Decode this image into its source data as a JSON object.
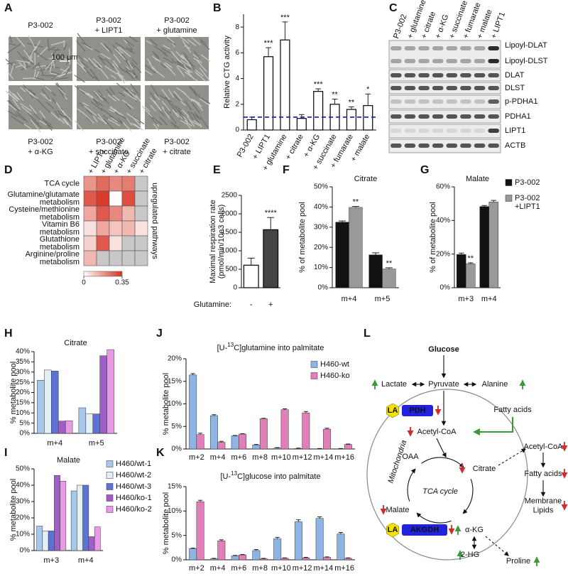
{
  "chart_data": [
    {
      "panel": "B",
      "type": "bar",
      "ylabel": "Relative CTG activity",
      "categories": [
        "P3-002",
        "+ LIPT1",
        "+ glutamine",
        "+ citrate",
        "+ α-KG",
        "+ succinate",
        "+ fumarate",
        "+ malate"
      ],
      "values": [
        0.8,
        5.7,
        7.0,
        0.9,
        3.0,
        2.0,
        1.6,
        1.9
      ],
      "errors": [
        0.2,
        0.7,
        1.4,
        0.3,
        0.2,
        0.4,
        0.2,
        0.9
      ],
      "annotations": [
        null,
        "***",
        "***",
        null,
        "***",
        "**",
        "**",
        "*"
      ],
      "color": "#ffffff",
      "edge_color": "#000000",
      "reference_line": {
        "value": 1,
        "color": "#1f2aa8",
        "style": "dashed"
      },
      "ylim": [
        0,
        9
      ],
      "yticks": [
        0,
        2,
        4,
        6,
        8
      ]
    },
    {
      "panel": "D",
      "type": "heatmap",
      "columns": [
        "+ LIPT1",
        "+ glutamine",
        "+ α-KG",
        "+ succinate",
        "+ citrate"
      ],
      "rows": [
        "TCA cycle",
        "Glutamine/glutamate\nmetabolism",
        "Cysteine/methionine\nmetabolism",
        "Vitamin B6\nmetabolism",
        "Glutathione\nmetabolism",
        "Arginine/proline\nmetabolism"
      ],
      "values": [
        [
          0.18,
          0.25,
          0.2,
          0.22,
          null
        ],
        [
          0.28,
          0.33,
          0,
          0.3,
          null
        ],
        [
          0.15,
          0.28,
          0.2,
          0.12,
          null
        ],
        [
          0.05,
          0.15,
          0.1,
          0.12,
          0.05
        ],
        [
          0.08,
          0.28,
          0.05,
          null,
          null
        ],
        [
          0.12,
          null,
          null,
          null,
          null
        ]
      ],
      "clim": [
        0,
        0.35
      ],
      "colorbar_ticks": [
        0,
        0.35
      ],
      "cmap": [
        "#ffffff",
        "#d7301f"
      ],
      "missing_color": "#c8c8c8",
      "annotation": "upregulated pathways"
    },
    {
      "panel": "E",
      "type": "bar",
      "ylabel": "Maximal respiration rate\n(pmol/min/10e3 cells)",
      "xlabel": "Glutamine:",
      "categories": [
        "-",
        "+"
      ],
      "values": [
        610,
        1570
      ],
      "errors": [
        190,
        330
      ],
      "annotations": [
        null,
        "****"
      ],
      "colors": [
        "#ffffff",
        "#444444"
      ],
      "edge_color": "#000000",
      "ylim": [
        0,
        2500
      ],
      "yticks": [
        0,
        500,
        1000,
        1500,
        2000,
        2500
      ]
    },
    {
      "panel": "F",
      "type": "bar",
      "title": "Citrate",
      "ylabel": "% of metabolite pool",
      "categories": [
        "m+4",
        "m+5"
      ],
      "series": [
        {
          "color": "#111111",
          "values": [
            32.5,
            16.3
          ],
          "errors": [
            0.6,
            1.0
          ]
        },
        {
          "color": "#999999",
          "values": [
            39.8,
            9.3
          ],
          "errors": [
            0.5,
            0.6
          ],
          "annotations": [
            "**",
            "**"
          ]
        }
      ],
      "ylim": [
        0,
        50
      ],
      "yticks": [
        {
          "value": 0,
          "label": "0%"
        },
        {
          "value": 10,
          "label": "10%"
        },
        {
          "value": 20,
          "label": "20%"
        },
        {
          "value": 30,
          "label": "30%"
        },
        {
          "value": 40,
          "label": "40%"
        },
        {
          "value": 50,
          "label": "50%"
        }
      ]
    },
    {
      "panel": "G",
      "type": "bar",
      "title": "Malate",
      "ylabel": "% of metabolite pool",
      "categories": [
        "m+3",
        "m+4"
      ],
      "series": [
        {
          "name": "P3-002",
          "color": "#111111",
          "values": [
            19.8,
            48.3
          ],
          "errors": [
            0.8,
            0.6
          ]
        },
        {
          "name": "P3-002\n+LIPT1",
          "color": "#999999",
          "values": [
            14.2,
            51.0
          ],
          "errors": [
            0.6,
            0.9
          ],
          "annotations": [
            "**",
            null
          ]
        }
      ],
      "legend": "right",
      "ylim": [
        0,
        60
      ],
      "yticks": [
        {
          "value": 0,
          "label": "0%"
        },
        {
          "value": 20,
          "label": "20%"
        },
        {
          "value": 40,
          "label": "40%"
        },
        {
          "value": 60,
          "label": "60%"
        }
      ]
    },
    {
      "panel": "H",
      "type": "bar",
      "title": "Citrate",
      "ylabel": "% metabolite pool",
      "categories": [
        "m+4",
        "m+5"
      ],
      "series": [
        {
          "color": "#a6c8ec",
          "values": [
            26,
            12.5
          ]
        },
        {
          "color": "#e4eff8",
          "values": [
            31,
            9.5
          ]
        },
        {
          "color": "#5b73d6",
          "values": [
            30.5,
            9.5
          ]
        },
        {
          "color": "#a25ec8",
          "values": [
            6,
            38
          ]
        },
        {
          "color": "#e89ae6",
          "values": [
            6.2,
            41
          ]
        }
      ],
      "ylim": [
        0,
        40
      ],
      "yticks": [
        {
          "value": 0,
          "label": "0%"
        },
        {
          "value": 5,
          "label": "5%"
        },
        {
          "value": 10,
          "label": "10%"
        },
        {
          "value": 15,
          "label": "15%"
        },
        {
          "value": 20,
          "label": "20%"
        },
        {
          "value": 25,
          "label": "25%"
        },
        {
          "value": 30,
          "label": "30%"
        },
        {
          "value": 35,
          "label": "35%"
        },
        {
          "value": 40,
          "label": "40%"
        }
      ]
    },
    {
      "panel": "I",
      "type": "bar",
      "title": "Malate",
      "ylabel": "% metabolite pool",
      "categories": [
        "m+3",
        "m+4"
      ],
      "series": [
        {
          "name": "H460/wt-1",
          "color": "#a6c8ec",
          "values": [
            15,
            36.5
          ]
        },
        {
          "name": "H460/wt-2",
          "color": "#e4eff8",
          "values": [
            12,
            40
          ]
        },
        {
          "name": "H460/wt-3",
          "color": "#5b73d6",
          "values": [
            12,
            40
          ]
        },
        {
          "name": "H460/ko-1",
          "color": "#a25ec8",
          "values": [
            46,
            8.5
          ]
        },
        {
          "name": "H460/ko-2",
          "color": "#e89ae6",
          "values": [
            42.5,
            14.5
          ]
        }
      ],
      "legend": "right",
      "ylim": [
        0,
        50
      ],
      "yticks": [
        {
          "value": 0,
          "label": "0%"
        },
        {
          "value": 10,
          "label": "10%"
        },
        {
          "value": 20,
          "label": "20%"
        },
        {
          "value": 30,
          "label": "30%"
        },
        {
          "value": 40,
          "label": "40%"
        },
        {
          "value": 50,
          "label": "50%"
        }
      ]
    },
    {
      "panel": "J",
      "type": "bar",
      "title": [
        "[U-",
        "13",
        "C]glutamine into palmitate"
      ],
      "ylabel": "% metabolite pool",
      "categories": [
        "m+2",
        "m+4",
        "m+6",
        "m+8",
        "m+10",
        "m+12",
        "m+14",
        "m+16"
      ],
      "series": [
        {
          "name": "H460-wt",
          "color": "#8eb4e3",
          "values": [
            16.4,
            7.4,
            2.9,
            0.9,
            0.2,
            0.1,
            0,
            0
          ],
          "errors": [
            0.3,
            0.2,
            0.1,
            0.1,
            0.1,
            0.1,
            0.1,
            0.1
          ]
        },
        {
          "name": "H460-ko",
          "color": "#e07fb8",
          "values": [
            3.2,
            1.5,
            3.3,
            6.7,
            8.7,
            8.0,
            4.4,
            1.0
          ],
          "errors": [
            0.3,
            0.2,
            0.1,
            0.1,
            0.2,
            0.3,
            0.2,
            0.1
          ]
        }
      ],
      "legend": "upper right",
      "ylim": [
        0,
        20
      ],
      "yticks": [
        {
          "value": 0,
          "label": "0%"
        },
        {
          "value": 5,
          "label": "5%"
        },
        {
          "value": 10,
          "label": "10%"
        },
        {
          "value": 15,
          "label": "15%"
        },
        {
          "value": 20,
          "label": "20%"
        }
      ]
    },
    {
      "panel": "K",
      "type": "bar",
      "title": [
        "[U-",
        "13",
        "C]glucose into palmitate"
      ],
      "ylabel": "% metabolite pool",
      "categories": [
        "m+2",
        "m+4",
        "m+6",
        "m+8",
        "m+10",
        "m+12",
        "m+14",
        "m+16"
      ],
      "series": [
        {
          "color": "#8eb4e3",
          "values": [
            2.3,
            0.2,
            0.8,
            1.9,
            4.3,
            7.8,
            8.5,
            5.3
          ],
          "errors": [
            0.1,
            0.1,
            0.1,
            0.2,
            0.3,
            0.4,
            0.3,
            0.3
          ]
        },
        {
          "color": "#e07fb8",
          "values": [
            11.9,
            3.9,
            1.0,
            0.2,
            0.3,
            0.4,
            0.5,
            0.3
          ],
          "errors": [
            0.3,
            0.2,
            0.1,
            0.1,
            0.1,
            0.1,
            0.1,
            0.1
          ]
        }
      ],
      "ylim": [
        0,
        15
      ],
      "yticks": [
        {
          "value": 0,
          "label": "0%"
        },
        {
          "value": 5,
          "label": "5%"
        },
        {
          "value": 10,
          "label": "10%"
        },
        {
          "value": 15,
          "label": "15%"
        }
      ]
    }
  ],
  "figure": {
    "A": {
      "panel": "A",
      "images": [
        {
          "label": "P3-002"
        },
        {
          "label": "P3-002\n+ LIPT1"
        },
        {
          "label": "P3-002\n+ glutamine"
        },
        {
          "label": "P3-002\n+ α-KG"
        },
        {
          "label": "P3-002\n+ succinate"
        },
        {
          "label": "P3-002\n+ citrate"
        }
      ],
      "scale_bar": "100 μm"
    },
    "C": {
      "panel": "C",
      "lanes": [
        "P3-002",
        "+ glutamine",
        "+ citrate",
        "+ α-KG",
        "+ succinate",
        "+ fumarate",
        "+ malate",
        "+ LIPT1"
      ],
      "bands": [
        "Lipoyl-DLAT",
        "Lipoyl-DLST",
        "DLAT",
        "DLST",
        "p-PDHA1",
        "PDHA1",
        "LIPT1",
        "ACTB"
      ]
    },
    "L": {
      "panel": "L",
      "nodes": [
        {
          "label": "Glucose"
        },
        {
          "label": "Lactate"
        },
        {
          "label": "Pyruvate"
        },
        {
          "label": "Alanine"
        },
        {
          "label": "LA"
        },
        {
          "label": "PDH"
        },
        {
          "label": "Fatty acids"
        },
        {
          "label": "Acetyl-CoA"
        },
        {
          "label": "Mitochondria"
        },
        {
          "label": "OAA"
        },
        {
          "label": "Citrate"
        },
        {
          "label": "Malate"
        },
        {
          "label": "TCA cycle"
        },
        {
          "label": "LA"
        },
        {
          "label": "AKGDH"
        },
        {
          "label": "α-KG"
        },
        {
          "label": "2-HG"
        },
        {
          "label": "Proline"
        },
        {
          "label": "Acetyl-CoA"
        },
        {
          "label": "Fatty acids"
        },
        {
          "label": "Membrane\nLipids"
        }
      ]
    }
  }
}
